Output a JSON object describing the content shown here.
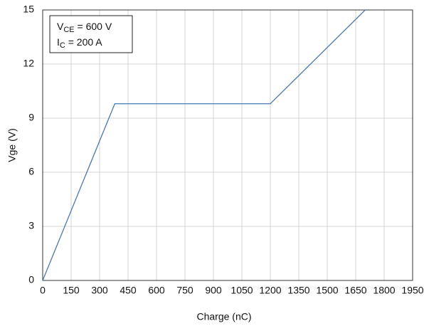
{
  "chart_data": {
    "type": "line",
    "xlabel": "Charge (nC)",
    "ylabel": "Vge (V)",
    "annotations": [
      [
        "V",
        "CE",
        " = 600 V"
      ],
      [
        "I",
        "C",
        " = 200 A"
      ]
    ],
    "series": [
      {
        "color": "#4a78b0",
        "x": [
          0,
          380,
          1200,
          1700
        ],
        "values": [
          0,
          9.8,
          9.8,
          15
        ]
      }
    ],
    "xlim": [
      0,
      1950
    ],
    "xticks": [
      0,
      150,
      300,
      450,
      600,
      750,
      900,
      1050,
      1200,
      1350,
      1500,
      1650,
      1800,
      1950
    ],
    "ylim": [
      0,
      15
    ],
    "yticks": [
      0,
      3,
      6,
      9,
      12,
      15
    ],
    "grid": true
  }
}
